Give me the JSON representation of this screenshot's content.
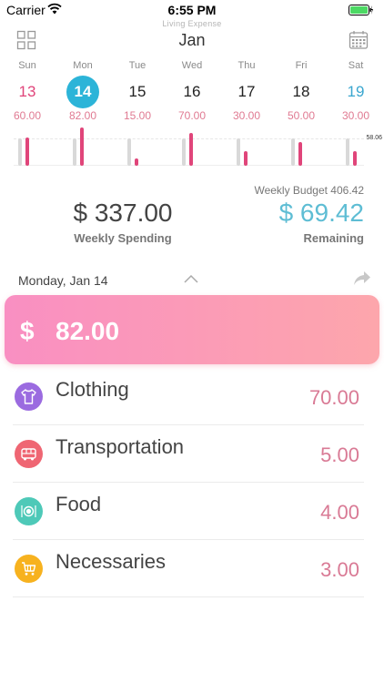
{
  "status_bar": {
    "carrier": "Carrier",
    "time": "6:55 PM"
  },
  "header": {
    "app_name": "Living Expense",
    "month": "Jan"
  },
  "week": {
    "days": [
      {
        "name": "Sun",
        "date": "13",
        "amount": "60.00"
      },
      {
        "name": "Mon",
        "date": "14",
        "amount": "82.00"
      },
      {
        "name": "Tue",
        "date": "15",
        "amount": "15.00"
      },
      {
        "name": "Wed",
        "date": "16",
        "amount": "70.00"
      },
      {
        "name": "Thu",
        "date": "17",
        "amount": "30.00"
      },
      {
        "name": "Fri",
        "date": "18",
        "amount": "50.00"
      },
      {
        "name": "Sat",
        "date": "19",
        "amount": "30.00"
      }
    ],
    "selected_index": 1,
    "chart_max_label": "58.06",
    "bar_fraction": [
      0.73,
      1.0,
      0.18,
      0.85,
      0.37,
      0.61,
      0.37
    ]
  },
  "summary": {
    "weekly_budget": "Weekly Budget 406.42",
    "spending": "$ 337.00",
    "spending_label": "Weekly Spending",
    "remaining": "$ 69.42",
    "remaining_label": "Remaining"
  },
  "day_detail": {
    "date_label": "Monday, Jan 14",
    "total_currency": "$",
    "total_amount": "82.00"
  },
  "categories": [
    {
      "name": "Clothing",
      "amount": "70.00",
      "color": "#9b6be0",
      "icon": "shirt-icon"
    },
    {
      "name": "Transportation",
      "amount": "5.00",
      "color": "#ef6673",
      "icon": "bus-icon"
    },
    {
      "name": "Food",
      "amount": "4.00",
      "color": "#4ec9b8",
      "icon": "plate-icon"
    },
    {
      "name": "Necessaries",
      "amount": "3.00",
      "color": "#f7b21f",
      "icon": "cart-icon"
    }
  ],
  "colors": {
    "accent_blue": "#2cb4d8",
    "spend_pink": "#e0457a",
    "remaining_blue": "#5ebdd4"
  }
}
